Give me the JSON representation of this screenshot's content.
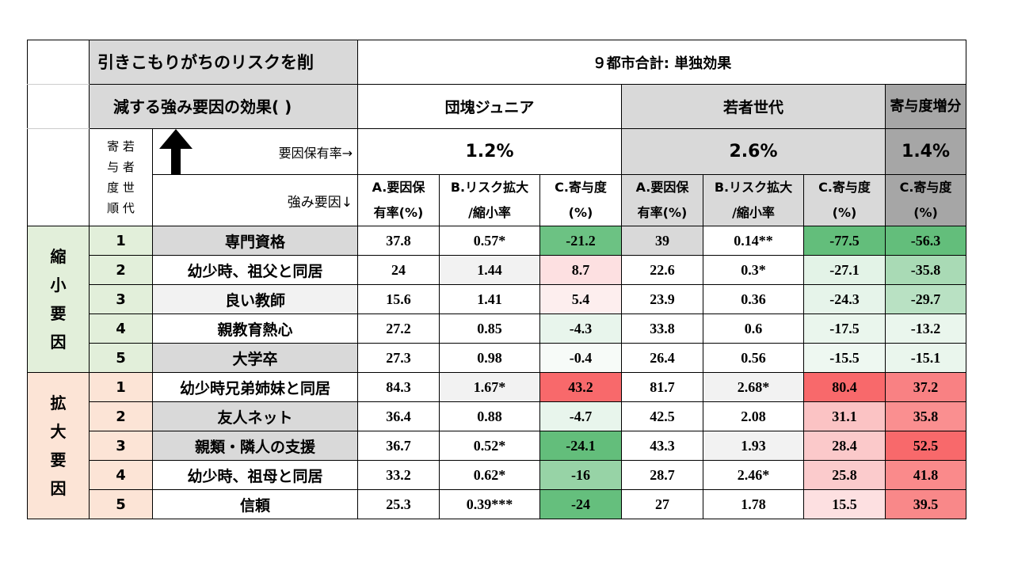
{
  "title_line1": "引きこもりがちのリスクを削",
  "title_line2": "減する強み要因の効果( )",
  "header_main": "９都市合計: 単独効果",
  "groups": {
    "dankai": "団塊ジュニア",
    "wakamono": "若者世代",
    "kiyo_zoubun": "寄与度増分"
  },
  "rank_label_chars": [
    "寄 若",
    "与 者",
    "度 世",
    "順 代"
  ],
  "factor_rate_label": "要因保有率→",
  "strength_label": "強み要因↓",
  "holding_rates": {
    "dankai": "1.2%",
    "wakamono": "2.6%",
    "zoubun": "1.4%"
  },
  "col_headers": {
    "a": [
      "A.要因保",
      "有率(%)"
    ],
    "b": [
      "B.リスク拡大",
      "/縮小率"
    ],
    "c": [
      "C.寄与度",
      "(%)"
    ]
  },
  "group_labels": {
    "shukusho": [
      "縮",
      "小",
      "要",
      "因"
    ],
    "kakudai": [
      "拡",
      "大",
      "要",
      "因"
    ]
  },
  "colors": {
    "green_strong": "#63be7b",
    "green_medium": "#8fd19e",
    "green_light": "#c6e6cf",
    "green_pale": "#e3f3e7",
    "red_strong": "#f8696b",
    "red_medium": "#fa9a9b",
    "red_light": "#fbc3c4",
    "red_pale": "#fde0e1"
  },
  "rows": [
    {
      "rank": "1",
      "factor": "専門資格",
      "a1": "37.8",
      "b1": "0.57*",
      "c1": "-21.2",
      "a2": "39",
      "b2": "0.14**",
      "c2": "-77.5",
      "d": "-56.3"
    },
    {
      "rank": "2",
      "factor": "幼少時、祖父と同居",
      "a1": "24",
      "b1": "1.44",
      "c1": "8.7",
      "a2": "22.6",
      "b2": "0.3*",
      "c2": "-27.1",
      "d": "-35.8"
    },
    {
      "rank": "3",
      "factor": "良い教師",
      "a1": "15.6",
      "b1": "1.41",
      "c1": "5.4",
      "a2": "23.9",
      "b2": "0.36",
      "c2": "-24.3",
      "d": "-29.7"
    },
    {
      "rank": "4",
      "factor": "親教育熱心",
      "a1": "27.2",
      "b1": "0.85",
      "c1": "-4.3",
      "a2": "33.8",
      "b2": "0.6",
      "c2": "-17.5",
      "d": "-13.2"
    },
    {
      "rank": "5",
      "factor": "大学卒",
      "a1": "27.3",
      "b1": "0.98",
      "c1": "-0.4",
      "a2": "26.4",
      "b2": "0.56",
      "c2": "-15.5",
      "d": "-15.1"
    },
    {
      "rank": "1",
      "factor": "幼少時兄弟姉妹と同居",
      "a1": "84.3",
      "b1": "1.67*",
      "c1": "43.2",
      "a2": "81.7",
      "b2": "2.68*",
      "c2": "80.4",
      "d": "37.2"
    },
    {
      "rank": "2",
      "factor": "友人ネット",
      "a1": "36.4",
      "b1": "0.88",
      "c1": "-4.7",
      "a2": "42.5",
      "b2": "2.08",
      "c2": "31.1",
      "d": "35.8"
    },
    {
      "rank": "3",
      "factor": "親類・隣人の支援",
      "a1": "36.7",
      "b1": "0.52*",
      "c1": "-24.1",
      "a2": "43.3",
      "b2": "1.93",
      "c2": "28.4",
      "d": "52.5"
    },
    {
      "rank": "4",
      "factor": "幼少時、祖母と同居",
      "a1": "33.2",
      "b1": "0.62*",
      "c1": "-16",
      "a2": "28.7",
      "b2": "2.46*",
      "c2": "25.8",
      "d": "41.8"
    },
    {
      "rank": "5",
      "factor": "信頼",
      "a1": "25.3",
      "b1": "0.39***",
      "c1": "-24",
      "a2": "27",
      "b2": "1.78",
      "c2": "15.5",
      "d": "39.5"
    }
  ]
}
